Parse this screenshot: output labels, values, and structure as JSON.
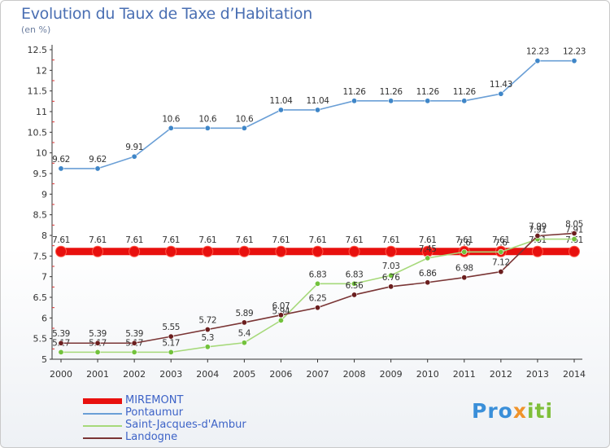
{
  "header": {
    "title": "Evolution du Taux de Taxe d’Habitation",
    "units": "(en %)"
  },
  "brand": {
    "parts": [
      "Pro",
      "x",
      "iti"
    ],
    "colors": [
      "#3a8fd9",
      "#f0932a",
      "#7fbf3a"
    ]
  },
  "chart_data": {
    "type": "line",
    "title": "Evolution du Taux de Taxe d’Habitation",
    "ylabel": "(en %)",
    "ylim": [
      5,
      12.5
    ],
    "yticks": [
      "5",
      "5.5",
      "6",
      "6.5",
      "7",
      "7.5",
      "8",
      "8.5",
      "9",
      "9.5",
      "10",
      "10.5",
      "11",
      "11.5",
      "12",
      "12.5"
    ],
    "x": [
      "2000",
      "2001",
      "2002",
      "2003",
      "2004",
      "2005",
      "2006",
      "2007",
      "2008",
      "2009",
      "2010",
      "2011",
      "2012",
      "2013",
      "2014"
    ],
    "series": [
      {
        "name": "MIREMONT",
        "color": "#e8100e",
        "bold": true,
        "values": [
          7.61,
          7.61,
          7.61,
          7.61,
          7.61,
          7.61,
          7.61,
          7.61,
          7.61,
          7.61,
          7.61,
          7.61,
          7.61,
          7.61,
          7.61
        ]
      },
      {
        "name": "Pontaumur",
        "color": "#6a9fd6",
        "markerColor": "#3f86c8",
        "values": [
          9.62,
          9.62,
          9.91,
          10.6,
          10.6,
          10.6,
          11.04,
          11.04,
          11.26,
          11.26,
          11.26,
          11.26,
          11.43,
          12.23,
          12.23
        ]
      },
      {
        "name": "Saint-Jacques-d'Ambur",
        "color": "#a6d97a",
        "markerColor": "#72c23c",
        "values": [
          5.17,
          5.17,
          5.17,
          5.17,
          5.3,
          5.4,
          5.94,
          6.83,
          6.83,
          7.03,
          7.45,
          7.6,
          7.6,
          7.91,
          7.91
        ]
      },
      {
        "name": "Landogne",
        "color": "#7a3535",
        "markerColor": "#6b1e1e",
        "values": [
          5.39,
          5.39,
          5.39,
          5.55,
          5.72,
          5.89,
          6.07,
          6.25,
          6.56,
          6.76,
          6.86,
          6.98,
          7.12,
          7.99,
          8.05
        ]
      }
    ],
    "legend_position": "bottom-left",
    "grid": false
  }
}
